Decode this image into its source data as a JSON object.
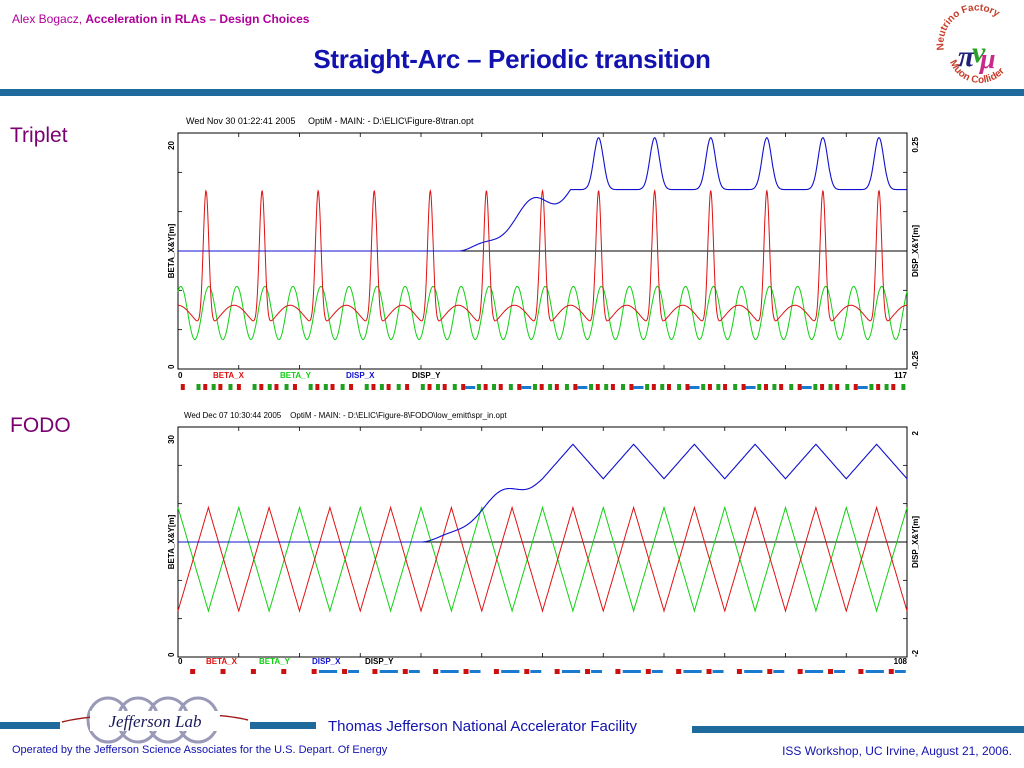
{
  "header": {
    "author": "Alex Bogacz,",
    "subtitle": "Acceleration in RLAs – Design Choices",
    "title": "Straight-Arc – Periodic transition"
  },
  "logo": {
    "top_text": "Neutrino Factory",
    "bottom_text": "Muon Collider"
  },
  "sections": {
    "triplet_label": "Triplet",
    "fodo_label": "FODO"
  },
  "colors": {
    "beta_x": "#e01010",
    "beta_y": "#10d010",
    "disp_x": "#1010d0",
    "disp_y": "#000000",
    "accent": "#1f6a9c",
    "title": "#1212b0",
    "header": "#b0009a"
  },
  "chart_data": [
    {
      "type": "line",
      "header": "Wed Nov 30 01:22:41 2005",
      "program": "OptiM - MAIN: - D:\\ELIC\\Figure-8\\tran.opt",
      "ylabel_left": "BETA_X&Y[m]",
      "ylabel_right": "DISP_X&Y[m]",
      "y_left_ticks": [
        "20",
        "0"
      ],
      "y_right_ticks": [
        "0.25",
        "-0.25"
      ],
      "x_ticks": [
        "0",
        "117"
      ],
      "xlim": [
        0,
        117
      ],
      "ylim_left": [
        0,
        20
      ],
      "ylim_right": [
        -0.25,
        0.25
      ],
      "legend": [
        "BETA_X",
        "BETA_Y",
        "DISP_X",
        "DISP_Y"
      ],
      "periods": 13,
      "transition_period": 5,
      "series": [
        {
          "name": "BETA_X",
          "peak": 16.0,
          "min": 4.5
        },
        {
          "name": "BETA_Y",
          "peak": 7.5,
          "min": 2.5
        },
        {
          "name": "DISP_X",
          "straight_value": 0.0,
          "periodic_max": 0.24,
          "periodic_min": 0.13
        },
        {
          "name": "DISP_Y",
          "value": 0.0
        }
      ]
    },
    {
      "type": "line",
      "header": "Wed Dec 07 10:30:44 2005",
      "program": "OptiM - MAIN: - D:\\ELIC\\Figure-8\\FODO\\low_emitt\\spr_in.opt",
      "ylabel_left": "BETA_X&Y[m]",
      "ylabel_right": "DISP_X&Y[m]",
      "y_left_ticks": [
        "30",
        "0"
      ],
      "y_right_ticks": [
        "2",
        "-2"
      ],
      "x_ticks": [
        "0",
        "108"
      ],
      "xlim": [
        0,
        108
      ],
      "ylim_left": [
        0,
        30
      ],
      "ylim_right": [
        -2,
        2
      ],
      "legend": [
        "BETA_X",
        "BETA_Y",
        "DISP_X",
        "DISP_Y"
      ],
      "periods": 12,
      "transition_period": 4,
      "series": [
        {
          "name": "BETA_X",
          "peak": 19.5,
          "min": 6.0
        },
        {
          "name": "BETA_Y",
          "peak": 19.5,
          "min": 6.0
        },
        {
          "name": "DISP_X",
          "straight_value": 0.0,
          "periodic_max": 1.7,
          "periodic_min": 1.1
        },
        {
          "name": "DISP_Y",
          "value": 0.0
        }
      ]
    }
  ],
  "footer": {
    "facility": "Thomas Jefferson National Accelerator Facility",
    "jlab_name": "Jefferson Lab",
    "operated_by": "Operated by the Jefferson Science Associates for the U.S. Depart. Of Energy",
    "event": "ISS Workshop, UC Irvine,  August 21, 2006."
  }
}
